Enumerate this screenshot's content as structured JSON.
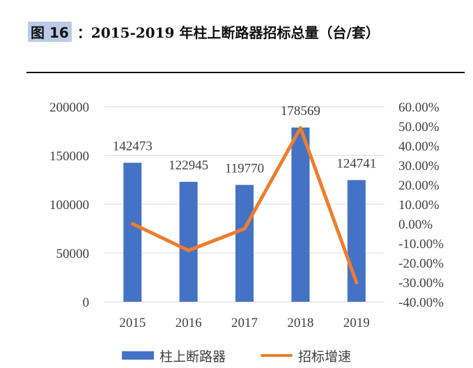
{
  "figure": {
    "tag": "图 16",
    "title": "：2015-2019 年柱上断路器招标总量（台/套）"
  },
  "colors": {
    "bar": "#4472c4",
    "line": "#ed7d31",
    "grid": "#d9d9d9",
    "text": "#404040"
  },
  "chart_data": {
    "type": "bar",
    "title": "2015-2019 年柱上断路器招标总量（台/套）",
    "categories": [
      "2015",
      "2016",
      "2017",
      "2018",
      "2019"
    ],
    "series": [
      {
        "name": "柱上断路器",
        "type": "bar",
        "axis": "left",
        "values": [
          142473,
          122945,
          119770,
          178569,
          124741
        ],
        "data_labels": [
          "142473",
          "122945",
          "119770",
          "178569",
          "124741"
        ]
      },
      {
        "name": "招标增速",
        "type": "line",
        "axis": "right",
        "values": [
          0.0,
          -13.71,
          -2.58,
          49.09,
          -30.14
        ]
      }
    ],
    "y_left": {
      "min": 0,
      "max": 200000,
      "ticks": [
        "200000",
        "150000",
        "100000",
        "50000",
        "0"
      ]
    },
    "y_right": {
      "min": -40,
      "max": 60,
      "unit": "%",
      "ticks": [
        "60.00%",
        "50.00%",
        "40.00%",
        "30.00%",
        "20.00%",
        "10.00%",
        "0.00%",
        "-10.00%",
        "-20.00%",
        "-30.00%",
        "-40.00%"
      ]
    },
    "grid": true,
    "legend_position": "bottom"
  },
  "legend": {
    "bar_label": "柱上断路器",
    "line_label": "招标增速"
  }
}
